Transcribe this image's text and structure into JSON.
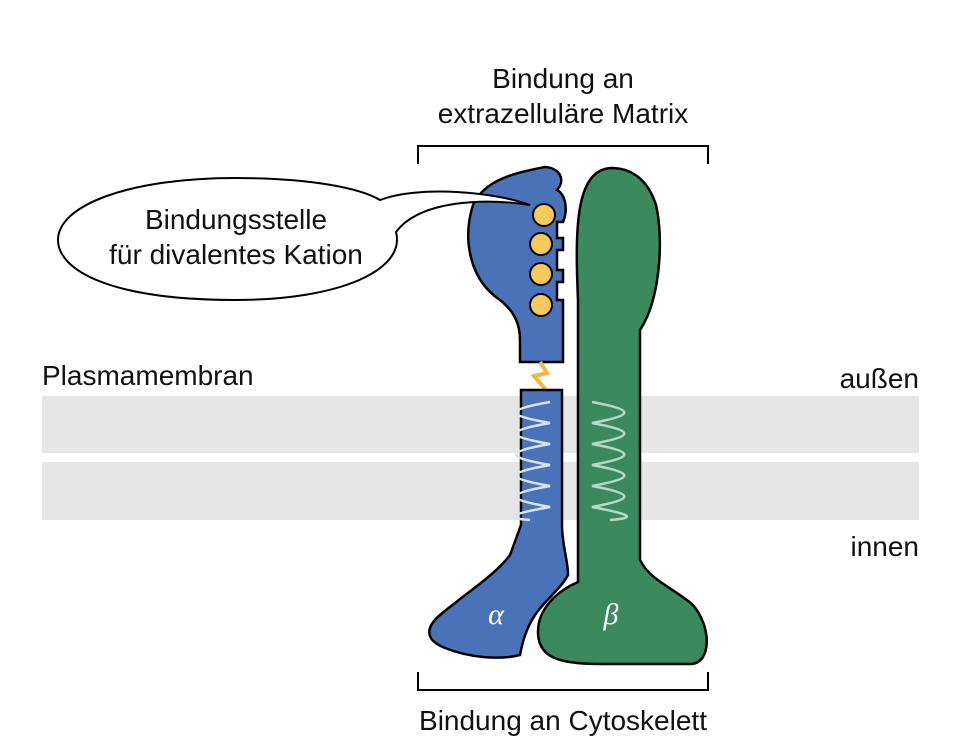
{
  "labels": {
    "top_line1": "Bindung an",
    "top_line2": "extrazelluläre Matrix",
    "callout_line1": "Bindungsstelle",
    "callout_line2": "für divalentes Kation",
    "membrane": "Plasmamembran",
    "outside": "außen",
    "inside": "innen",
    "alpha": "α",
    "beta": "β",
    "bottom": "Bindung an Cytoskelett"
  },
  "colors": {
    "alpha_subunit": "#4A72B8",
    "beta_subunit": "#3A8A5E",
    "membrane": "#E6E6E6",
    "cation": "#F7C95A",
    "disulfide": "#F2B93B",
    "outline": "#000000"
  },
  "cation_binding_sites": 4
}
